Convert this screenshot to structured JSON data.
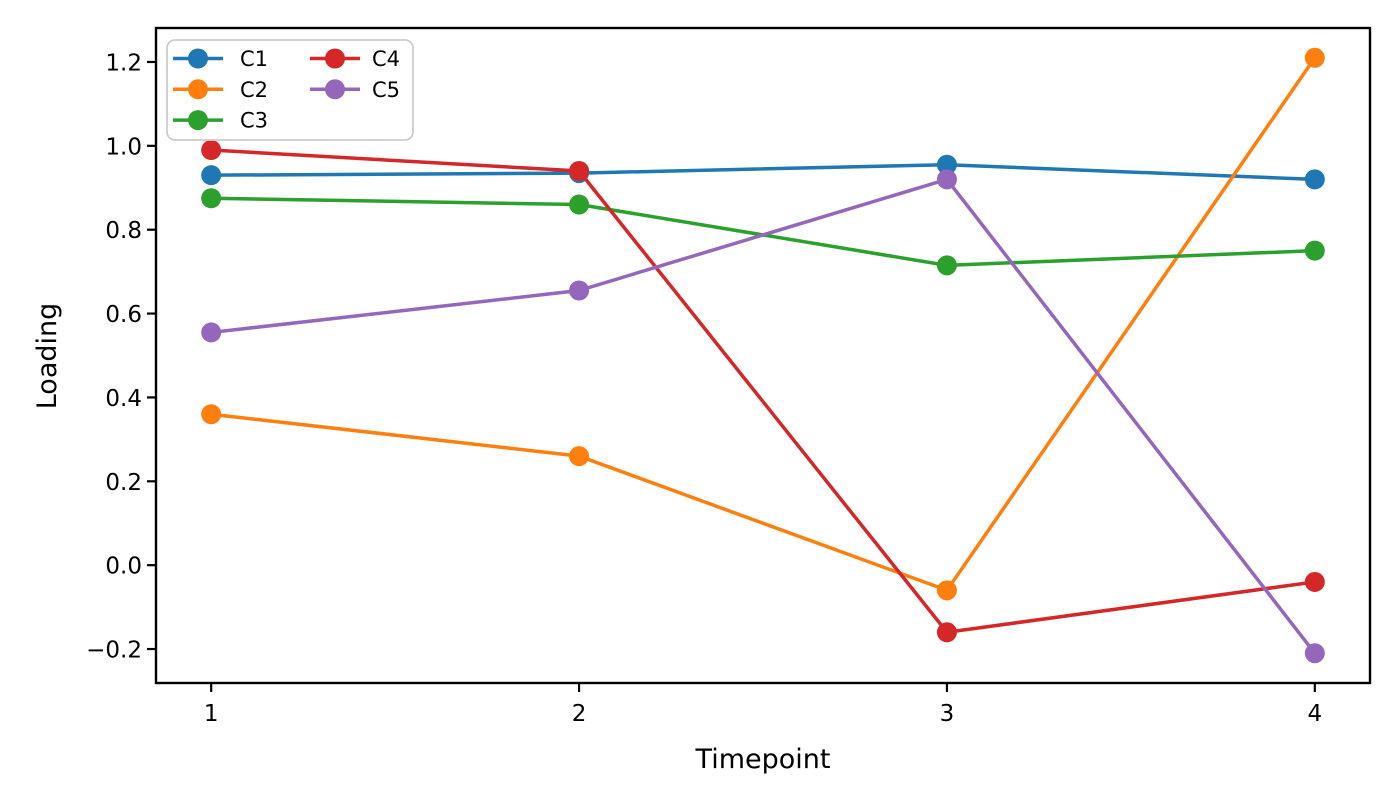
{
  "chart_data": {
    "type": "line",
    "title": "",
    "xlabel": "Timepoint",
    "ylabel": "Loading",
    "x": [
      1,
      2,
      3,
      4
    ],
    "xlim": [
      0.85,
      4.15
    ],
    "ylim": [
      -0.281,
      1.281
    ],
    "grid": false,
    "background": "#ffffff",
    "axis_color": "#000000",
    "xticks": {
      "values": [
        1,
        2,
        3,
        4
      ],
      "labels": [
        "1",
        "2",
        "3",
        "4"
      ]
    },
    "yticks": {
      "values": [
        -0.2,
        0.0,
        0.2,
        0.4,
        0.6,
        0.8,
        1.0,
        1.2
      ],
      "labels": [
        "−0.2",
        "0.0",
        "0.2",
        "0.4",
        "0.6",
        "0.8",
        "1.0",
        "1.2"
      ]
    },
    "legend": {
      "position": "upper-left",
      "ncol": 2,
      "border_color": "#cccccc",
      "background": "#ffffff",
      "columns": [
        [
          "C1",
          "C2",
          "C3"
        ],
        [
          "C4",
          "C5"
        ]
      ]
    },
    "marker": "o",
    "series": [
      {
        "name": "C1",
        "color": "#1f77b4",
        "values": [
          0.93,
          0.935,
          0.955,
          0.92
        ]
      },
      {
        "name": "C2",
        "color": "#ff7f0e",
        "values": [
          0.36,
          0.26,
          -0.06,
          1.21
        ]
      },
      {
        "name": "C3",
        "color": "#2ca02c",
        "values": [
          0.875,
          0.86,
          0.715,
          0.75
        ]
      },
      {
        "name": "C4",
        "color": "#d62728",
        "values": [
          0.99,
          0.94,
          -0.16,
          -0.04
        ]
      },
      {
        "name": "C5",
        "color": "#9467bd",
        "values": [
          0.555,
          0.655,
          0.92,
          -0.21
        ]
      }
    ]
  }
}
